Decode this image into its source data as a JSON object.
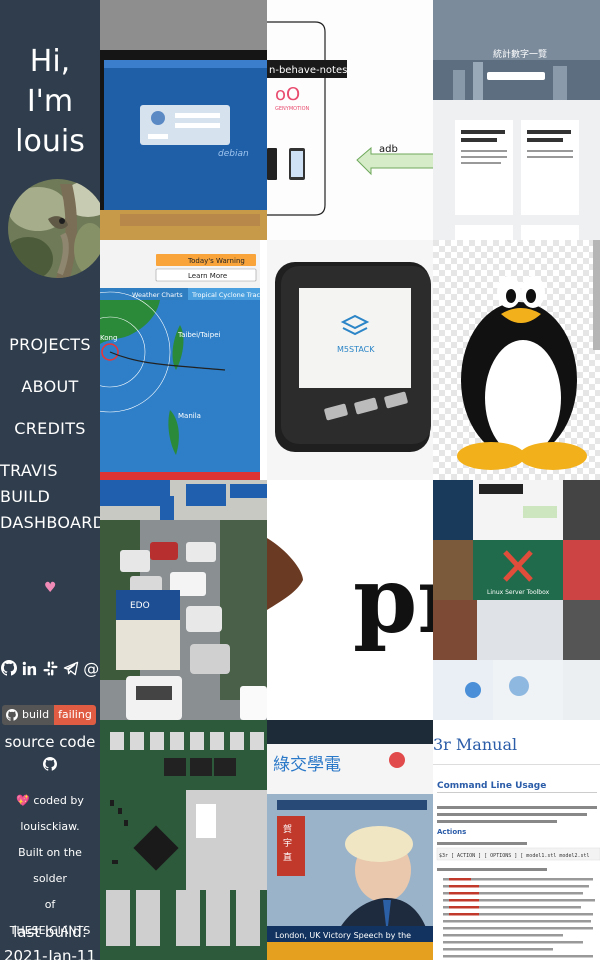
{
  "sidebar": {
    "greeting": [
      "Hi,",
      "I'm",
      "louis"
    ],
    "nav": [
      {
        "label": "PROJECTS"
      },
      {
        "label": "ABOUT"
      },
      {
        "label": "CREDITS"
      },
      {
        "label": "TRAVIS\nBUILD\nDASHBOARD"
      }
    ],
    "heart": "♥",
    "social_icons": [
      "github-icon",
      "linkedin-icon",
      "slack-icon",
      "telegram-icon",
      "email-icon"
    ],
    "badge": {
      "label": "build",
      "status": "failing",
      "status_color": "#e05d44"
    },
    "source_code": "source code",
    "coded_by": "💖 coded by",
    "author": "louisckiaw.",
    "built_on": "Built on the solder",
    "of": "of",
    "giants": "THESE GIANTS",
    "last_build": "last build:",
    "last_build_date": "2021-Jan-11"
  },
  "tiles": {
    "t2": {
      "banner": "n-behave-notes",
      "logo": "GENYMOTION",
      "arrow_label": "adb"
    },
    "t3": {
      "title": "統計數字一覽"
    },
    "t4": {
      "warning": "Today's Warning",
      "learn": "Learn More",
      "tab1": "Weather Charts",
      "tab2": "Tropical Cyclone Track",
      "city1": "Taibei/Taipei",
      "city2": "Manila",
      "city3": "Kong"
    },
    "t5": {
      "brand": "M5STACK"
    },
    "t7": {
      "sign": "EDO"
    },
    "t8": {
      "letters": "pr"
    },
    "t9": {
      "caption": "Linux Server Toolbox"
    },
    "t11": {
      "headline": "London, UK Victory Speech by the"
    },
    "t12": {
      "title": "3r Manual",
      "h1": "Command Line Usage",
      "h2": "Actions",
      "syntax": "$3r [ ACTION ] [ OPTIONS ] [ model1.stl model2.stl"
    }
  }
}
